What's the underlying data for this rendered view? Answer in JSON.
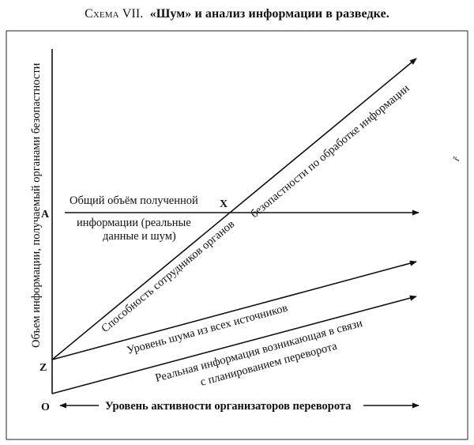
{
  "title": {
    "prefix": "Схема VII.",
    "text": "«Шум» и анализ информации в разведке."
  },
  "axes": {
    "y_label": "Объем информации, получаемый органами безопастности",
    "x_label": "Уровень активности организаторов переворота",
    "origin": "O",
    "point_a": "A",
    "point_z": "Z",
    "point_x": "X"
  },
  "labels": {
    "total_line1": "Общий объём полученной",
    "total_line2": "информации (реальные",
    "total_line3": "данные и шум)",
    "capacity_part1": "Способность сотрудников органов",
    "capacity_part2": "безопастности по обработке информации",
    "noise": "Уровень шума из всех источников",
    "real_line1": "Реальная информация возникающая в  связи",
    "real_line2": "с  планированием переворота"
  },
  "stray_mark": "ř"
}
